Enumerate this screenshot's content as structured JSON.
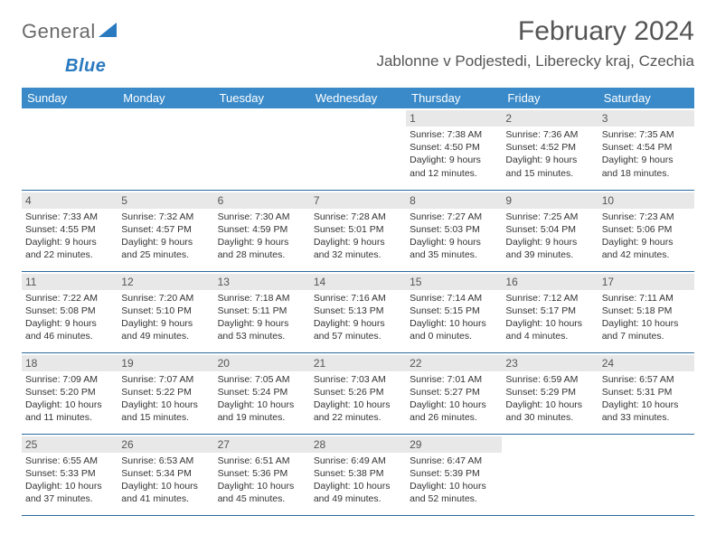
{
  "brand": {
    "part1": "General",
    "part2": "Blue"
  },
  "title": "February 2024",
  "location": "Jablonne v Podjestedi, Liberecky kraj, Czechia",
  "colors": {
    "header_bg": "#3a8ac9",
    "header_text": "#ffffff",
    "border": "#2a6aa0",
    "daynum_bg": "#e8e8e8",
    "text": "#333333",
    "brand_gray": "#6a6a6a",
    "brand_blue": "#2a7ac0"
  },
  "day_headers": [
    "Sunday",
    "Monday",
    "Tuesday",
    "Wednesday",
    "Thursday",
    "Friday",
    "Saturday"
  ],
  "weeks": [
    [
      null,
      null,
      null,
      null,
      {
        "n": "1",
        "sr": "7:38 AM",
        "ss": "4:50 PM",
        "dl": "9 hours and 12 minutes."
      },
      {
        "n": "2",
        "sr": "7:36 AM",
        "ss": "4:52 PM",
        "dl": "9 hours and 15 minutes."
      },
      {
        "n": "3",
        "sr": "7:35 AM",
        "ss": "4:54 PM",
        "dl": "9 hours and 18 minutes."
      }
    ],
    [
      {
        "n": "4",
        "sr": "7:33 AM",
        "ss": "4:55 PM",
        "dl": "9 hours and 22 minutes."
      },
      {
        "n": "5",
        "sr": "7:32 AM",
        "ss": "4:57 PM",
        "dl": "9 hours and 25 minutes."
      },
      {
        "n": "6",
        "sr": "7:30 AM",
        "ss": "4:59 PM",
        "dl": "9 hours and 28 minutes."
      },
      {
        "n": "7",
        "sr": "7:28 AM",
        "ss": "5:01 PM",
        "dl": "9 hours and 32 minutes."
      },
      {
        "n": "8",
        "sr": "7:27 AM",
        "ss": "5:03 PM",
        "dl": "9 hours and 35 minutes."
      },
      {
        "n": "9",
        "sr": "7:25 AM",
        "ss": "5:04 PM",
        "dl": "9 hours and 39 minutes."
      },
      {
        "n": "10",
        "sr": "7:23 AM",
        "ss": "5:06 PM",
        "dl": "9 hours and 42 minutes."
      }
    ],
    [
      {
        "n": "11",
        "sr": "7:22 AM",
        "ss": "5:08 PM",
        "dl": "9 hours and 46 minutes."
      },
      {
        "n": "12",
        "sr": "7:20 AM",
        "ss": "5:10 PM",
        "dl": "9 hours and 49 minutes."
      },
      {
        "n": "13",
        "sr": "7:18 AM",
        "ss": "5:11 PM",
        "dl": "9 hours and 53 minutes."
      },
      {
        "n": "14",
        "sr": "7:16 AM",
        "ss": "5:13 PM",
        "dl": "9 hours and 57 minutes."
      },
      {
        "n": "15",
        "sr": "7:14 AM",
        "ss": "5:15 PM",
        "dl": "10 hours and 0 minutes."
      },
      {
        "n": "16",
        "sr": "7:12 AM",
        "ss": "5:17 PM",
        "dl": "10 hours and 4 minutes."
      },
      {
        "n": "17",
        "sr": "7:11 AM",
        "ss": "5:18 PM",
        "dl": "10 hours and 7 minutes."
      }
    ],
    [
      {
        "n": "18",
        "sr": "7:09 AM",
        "ss": "5:20 PM",
        "dl": "10 hours and 11 minutes."
      },
      {
        "n": "19",
        "sr": "7:07 AM",
        "ss": "5:22 PM",
        "dl": "10 hours and 15 minutes."
      },
      {
        "n": "20",
        "sr": "7:05 AM",
        "ss": "5:24 PM",
        "dl": "10 hours and 19 minutes."
      },
      {
        "n": "21",
        "sr": "7:03 AM",
        "ss": "5:26 PM",
        "dl": "10 hours and 22 minutes."
      },
      {
        "n": "22",
        "sr": "7:01 AM",
        "ss": "5:27 PM",
        "dl": "10 hours and 26 minutes."
      },
      {
        "n": "23",
        "sr": "6:59 AM",
        "ss": "5:29 PM",
        "dl": "10 hours and 30 minutes."
      },
      {
        "n": "24",
        "sr": "6:57 AM",
        "ss": "5:31 PM",
        "dl": "10 hours and 33 minutes."
      }
    ],
    [
      {
        "n": "25",
        "sr": "6:55 AM",
        "ss": "5:33 PM",
        "dl": "10 hours and 37 minutes."
      },
      {
        "n": "26",
        "sr": "6:53 AM",
        "ss": "5:34 PM",
        "dl": "10 hours and 41 minutes."
      },
      {
        "n": "27",
        "sr": "6:51 AM",
        "ss": "5:36 PM",
        "dl": "10 hours and 45 minutes."
      },
      {
        "n": "28",
        "sr": "6:49 AM",
        "ss": "5:38 PM",
        "dl": "10 hours and 49 minutes."
      },
      {
        "n": "29",
        "sr": "6:47 AM",
        "ss": "5:39 PM",
        "dl": "10 hours and 52 minutes."
      },
      null,
      null
    ]
  ],
  "labels": {
    "sunrise": "Sunrise: ",
    "sunset": "Sunset: ",
    "daylight": "Daylight: "
  }
}
